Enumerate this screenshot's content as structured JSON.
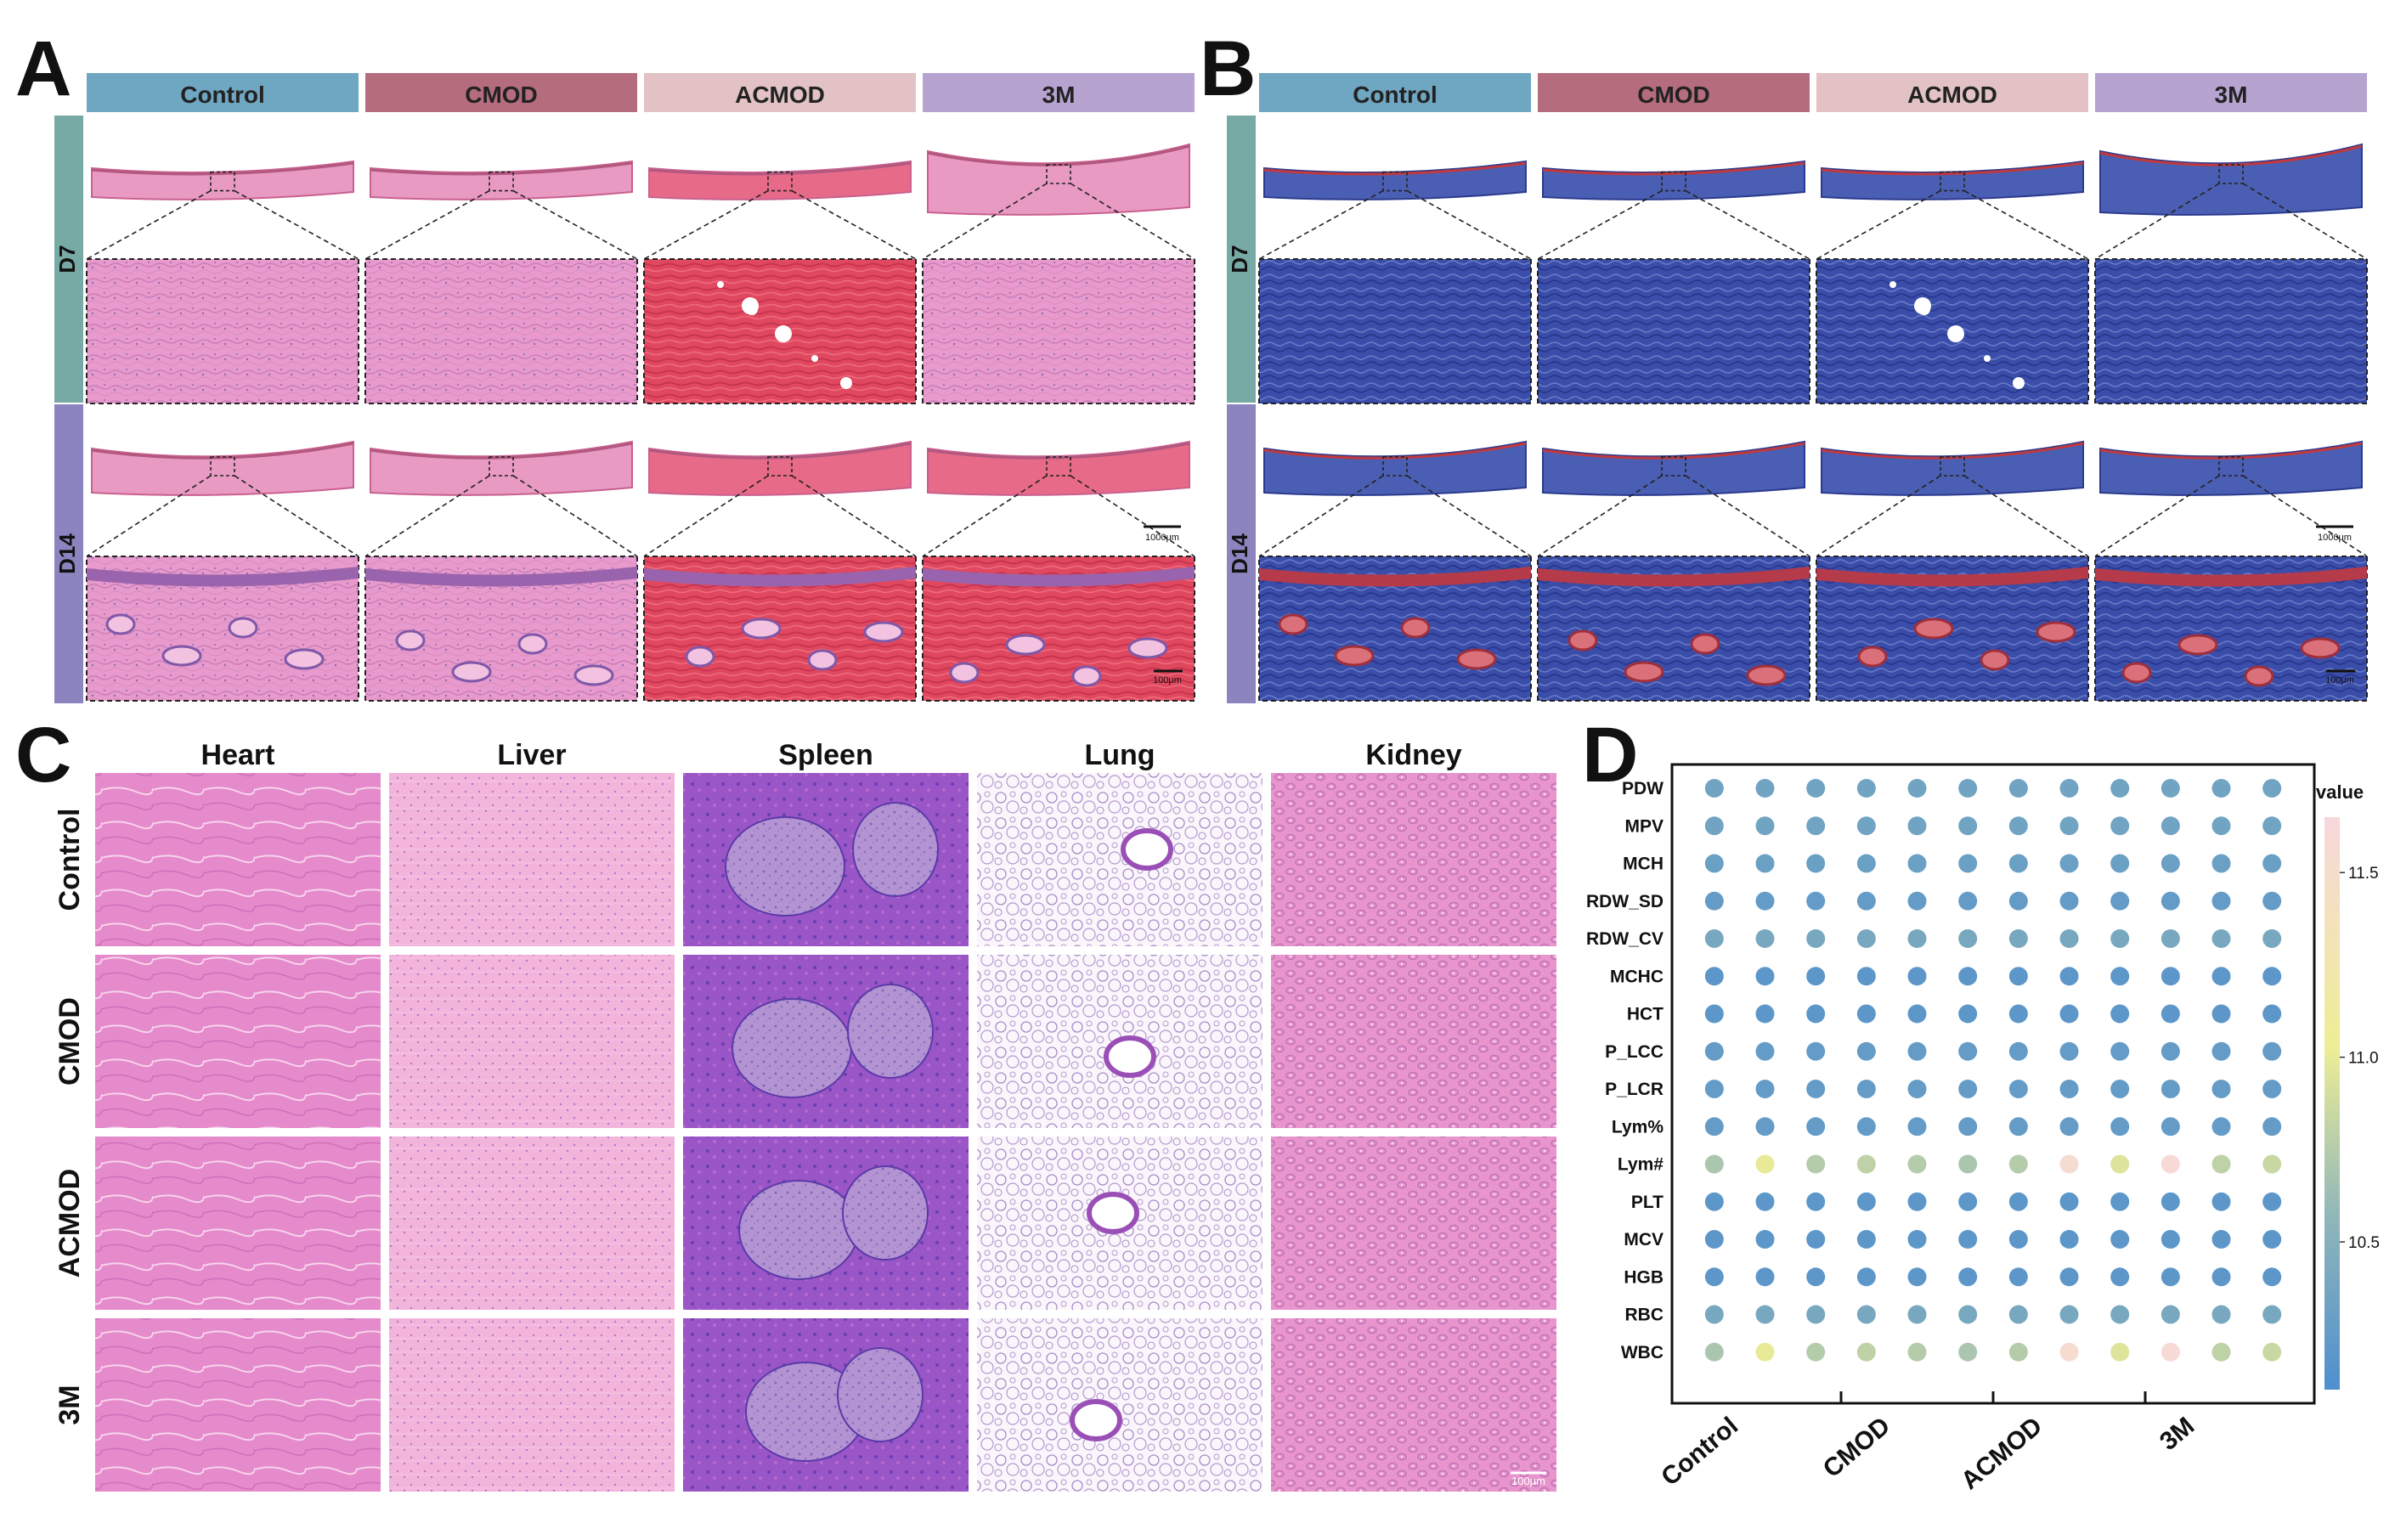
{
  "panel_letters": {
    "A": "A",
    "B": "B",
    "C": "C",
    "D": "D"
  },
  "panel_a": {
    "groups": [
      "Control",
      "CMOD",
      "ACMOD",
      "3M"
    ],
    "days": [
      "D7",
      "D14"
    ],
    "scale_bar_low": "1000μm",
    "scale_bar_high": "100μm"
  },
  "panel_b": {
    "groups": [
      "Control",
      "CMOD",
      "ACMOD",
      "3M"
    ],
    "days": [
      "D7",
      "D14"
    ],
    "scale_bar_low": "1000μm",
    "scale_bar_high": "100μm"
  },
  "panel_c": {
    "organs": [
      "Heart",
      "Liver",
      "Spleen",
      "Lung",
      "Kidney"
    ],
    "groups": [
      "Control",
      "CMOD",
      "ACMOD",
      "3M"
    ],
    "scale_bar": "100μm"
  },
  "colors": {
    "control": "#6fa6c1",
    "cmod": "#b56c7d",
    "acmod": "#e2c2c4",
    "m3": "#b7a3cf",
    "d7": "#78aaa5",
    "d14": "#8b84bf",
    "he_pink": "#e48bc6",
    "masson_blue": "#2f3f9c"
  },
  "chart_data": {
    "type": "heatmap",
    "rows": [
      "PDW",
      "MPV",
      "MCH",
      "RDW_SD",
      "RDW_CV",
      "MCHC",
      "HCT",
      "P_LCC",
      "P_LCR",
      "Lym%",
      "Lym#",
      "PLT",
      "MCV",
      "HGB",
      "RBC",
      "WBC"
    ],
    "groups": [
      "Control",
      "CMOD",
      "ACMOD",
      "3M"
    ],
    "columns_per_group": 3,
    "legend_title": "value",
    "legend_ticks": [
      10.5,
      11.0,
      11.5
    ],
    "legend_tick_labels": [
      "10.5",
      "11.0",
      "11.5"
    ],
    "legend_range": [
      10.1,
      11.65
    ],
    "values": [
      [
        10.35,
        10.35,
        10.35,
        10.35,
        10.35,
        10.35,
        10.35,
        10.35,
        10.35,
        10.35,
        10.35,
        10.35
      ],
      [
        10.35,
        10.35,
        10.35,
        10.35,
        10.35,
        10.35,
        10.35,
        10.35,
        10.35,
        10.35,
        10.35,
        10.35
      ],
      [
        10.3,
        10.3,
        10.3,
        10.3,
        10.3,
        10.3,
        10.3,
        10.3,
        10.3,
        10.3,
        10.3,
        10.3
      ],
      [
        10.25,
        10.25,
        10.25,
        10.25,
        10.25,
        10.25,
        10.25,
        10.25,
        10.25,
        10.25,
        10.25,
        10.25
      ],
      [
        10.4,
        10.4,
        10.4,
        10.4,
        10.4,
        10.4,
        10.4,
        10.4,
        10.4,
        10.4,
        10.4,
        10.4
      ],
      [
        10.2,
        10.2,
        10.2,
        10.2,
        10.2,
        10.2,
        10.2,
        10.2,
        10.2,
        10.2,
        10.2,
        10.2
      ],
      [
        10.2,
        10.2,
        10.2,
        10.2,
        10.2,
        10.2,
        10.2,
        10.2,
        10.2,
        10.2,
        10.2,
        10.2
      ],
      [
        10.25,
        10.25,
        10.25,
        10.25,
        10.25,
        10.25,
        10.25,
        10.25,
        10.25,
        10.25,
        10.25,
        10.25
      ],
      [
        10.25,
        10.25,
        10.25,
        10.25,
        10.25,
        10.25,
        10.25,
        10.25,
        10.25,
        10.25,
        10.25,
        10.25
      ],
      [
        10.25,
        10.25,
        10.25,
        10.25,
        10.25,
        10.25,
        10.25,
        10.25,
        10.25,
        10.25,
        10.25,
        10.25
      ],
      [
        10.7,
        11.0,
        10.75,
        10.8,
        10.75,
        10.7,
        10.75,
        11.55,
        10.95,
        11.6,
        10.8,
        10.85
      ],
      [
        10.2,
        10.2,
        10.2,
        10.2,
        10.2,
        10.2,
        10.2,
        10.2,
        10.2,
        10.2,
        10.2,
        10.2
      ],
      [
        10.2,
        10.2,
        10.2,
        10.2,
        10.2,
        10.2,
        10.2,
        10.2,
        10.2,
        10.2,
        10.2,
        10.2
      ],
      [
        10.2,
        10.2,
        10.2,
        10.2,
        10.2,
        10.2,
        10.2,
        10.2,
        10.2,
        10.2,
        10.2,
        10.2
      ],
      [
        10.4,
        10.4,
        10.4,
        10.4,
        10.4,
        10.4,
        10.4,
        10.4,
        10.4,
        10.4,
        10.4,
        10.4
      ],
      [
        10.7,
        11.0,
        10.75,
        10.8,
        10.75,
        10.7,
        10.75,
        11.55,
        10.95,
        11.6,
        10.8,
        10.85
      ]
    ]
  }
}
